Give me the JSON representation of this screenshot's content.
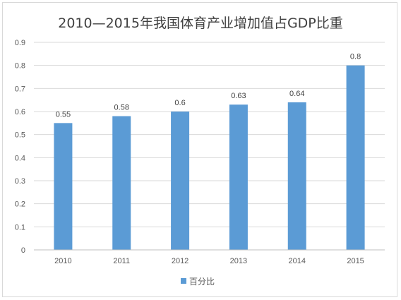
{
  "chart_data": {
    "type": "bar",
    "title": "2010—2015年我国体育产业增加值占GDP比重",
    "categories": [
      "2010",
      "2011",
      "2012",
      "2013",
      "2014",
      "2015"
    ],
    "series": [
      {
        "name": "百分比",
        "values": [
          0.55,
          0.58,
          0.6,
          0.63,
          0.64,
          0.8
        ],
        "labels": [
          "0.55",
          "0.58",
          "0.6",
          "0.63",
          "0.64",
          "0.8"
        ],
        "color": "#5b9bd5"
      }
    ],
    "y_ticks": [
      "0",
      "0.1",
      "0.2",
      "0.3",
      "0.4",
      "0.5",
      "0.6",
      "0.7",
      "0.8",
      "0.9"
    ],
    "ylim": [
      0,
      0.9
    ],
    "grid": true,
    "legend": "bottom"
  }
}
